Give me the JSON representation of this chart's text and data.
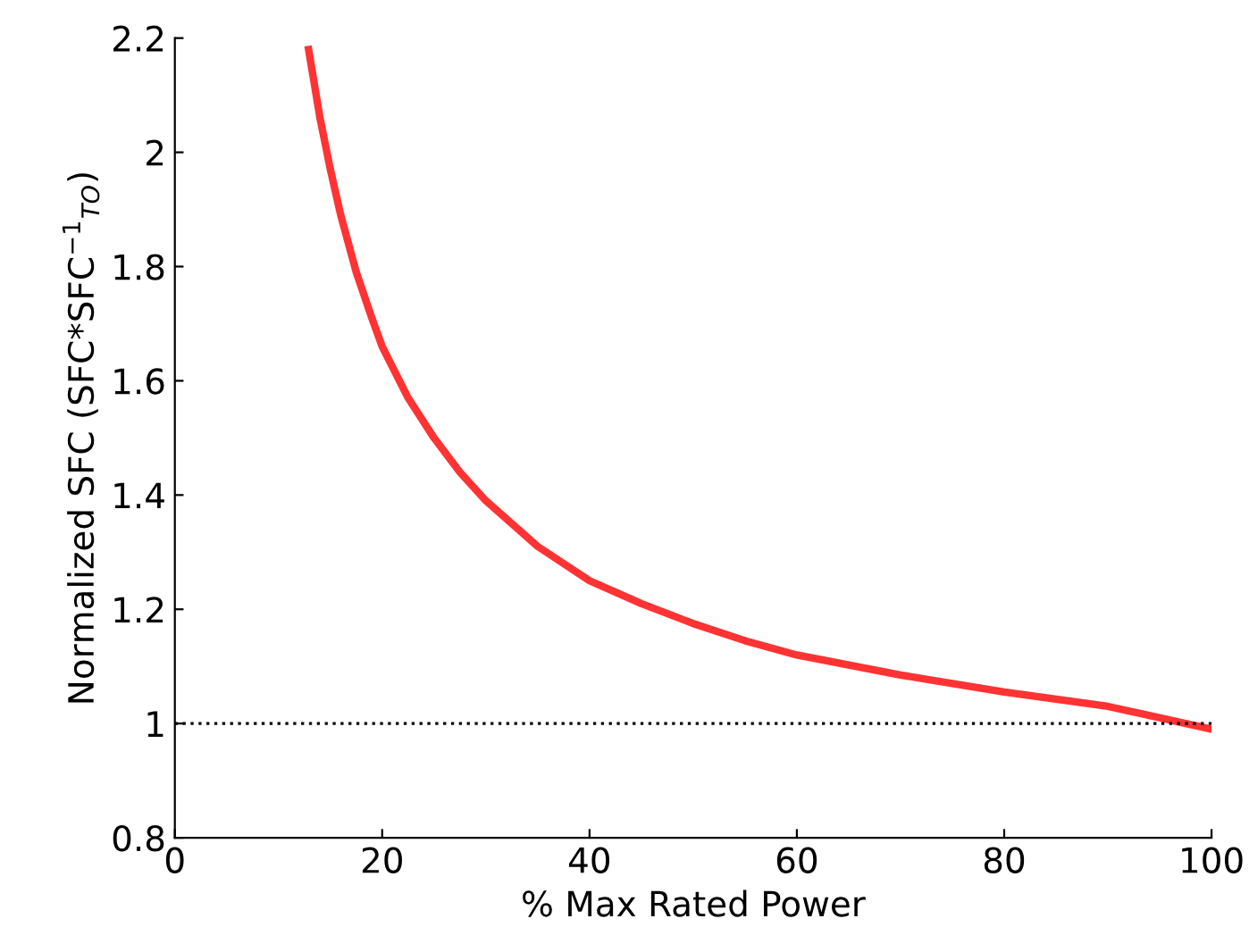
{
  "chart_data": {
    "type": "line",
    "xlabel": "% Max Rated Power",
    "ylabel": "Normalized SFC (SFC*SFC$^{−1}$$_{TO}$)",
    "x": [
      12.9,
      14,
      15,
      16,
      17.5,
      19,
      20,
      22.5,
      25,
      27.5,
      30,
      35,
      40,
      45,
      50,
      55,
      60,
      70,
      80,
      90,
      100
    ],
    "series": [
      {
        "color": "#ff3333",
        "values": [
          2.18,
          2.06,
          1.97,
          1.89,
          1.79,
          1.71,
          1.66,
          1.57,
          1.5,
          1.44,
          1.39,
          1.31,
          1.25,
          1.21,
          1.175,
          1.145,
          1.12,
          1.085,
          1.055,
          1.03,
          0.99
        ]
      }
    ],
    "xlim": [
      0,
      100
    ],
    "ylim": [
      0.8,
      2.2
    ],
    "xticks": [
      0,
      20,
      40,
      60,
      80,
      100
    ],
    "yticks": [
      0.8,
      1,
      1.2,
      1.4,
      1.6,
      1.8,
      2,
      2.2
    ],
    "ref_lines": [
      {
        "axis": "y",
        "value": 1,
        "color": "#000000",
        "line_style": "dotted"
      }
    ],
    "grid": false,
    "legend": false,
    "line_style": "solid",
    "marker": "none"
  }
}
